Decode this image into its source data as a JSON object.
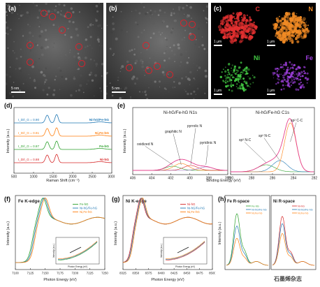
{
  "panels": {
    "a": {
      "label": "(a)",
      "scalebar": "5 nm"
    },
    "b": {
      "label": "(b)",
      "scalebar": "5 nm"
    },
    "c": {
      "label": "(c)",
      "maps": [
        {
          "element": "C",
          "color": "#e33030",
          "scalebar": "1 μm"
        },
        {
          "element": "N",
          "color": "#f08a24",
          "scalebar": "1 μm"
        },
        {
          "element": "Ni",
          "color": "#44cc44",
          "scalebar": "1 μm"
        },
        {
          "element": "Fe",
          "color": "#a040e0",
          "scalebar": "1 μm"
        }
      ]
    },
    "d": {
      "label": "(d)"
    },
    "e": {
      "label": "(e)"
    },
    "f": {
      "label": "(f)"
    },
    "g": {
      "label": "(g)"
    },
    "h": {
      "label": "(h)"
    }
  },
  "colors": {
    "fe_hg": "#2ca02c",
    "ni_hg_fe_hg": "#1f77b4",
    "ni_fe_hg": "#ff7f0e",
    "ni_hg": "#d62728"
  },
  "watermark": "石墨烯杂志",
  "chart_data": [
    {
      "id": "d",
      "type": "line",
      "xlabel": "Raman Shift (cm⁻¹)",
      "ylabel": "Intensity (a.u.)",
      "xlim": [
        500,
        3000
      ],
      "xticks": [
        500,
        1000,
        1500,
        2000,
        2500,
        3000
      ],
      "series": [
        {
          "name": "Ni-hG/Fe-hG",
          "ratio": "I_D/I_G = 0.90",
          "color": "#1f77b4"
        },
        {
          "name": "Ni,Fe-hG",
          "ratio": "I_D/I_G = 0.91",
          "color": "#ff7f0e"
        },
        {
          "name": "Fe-hG",
          "ratio": "I_D/I_G = 0.87",
          "color": "#2ca02c"
        },
        {
          "name": "Ni-hG",
          "ratio": "I_D/I_G = 0.88",
          "color": "#d62728"
        }
      ],
      "peaks": [
        {
          "x": 1350,
          "label": "D"
        },
        {
          "x": 1590,
          "label": "G"
        }
      ]
    },
    {
      "id": "e1",
      "type": "line",
      "title": "Ni-hG/Fe-hG N1s",
      "xlabel": "Binding Energy (eV)",
      "ylabel": "Intensity (a.u.)",
      "xlim": [
        406,
        396
      ],
      "xticks": [
        406,
        404,
        402,
        400,
        398,
        396
      ],
      "components": [
        {
          "name": "oxidized N",
          "center": 401.8
        },
        {
          "name": "graphitic N",
          "center": 400.9
        },
        {
          "name": "pyrrolic N",
          "center": 399.9
        },
        {
          "name": "pyridinic N",
          "center": 398.3
        }
      ]
    },
    {
      "id": "e2",
      "type": "line",
      "title": "Ni-hG/Fe-hG C1s",
      "xlim": [
        290,
        282
      ],
      "xticks": [
        290,
        288,
        286,
        284,
        282
      ],
      "components": [
        {
          "name": "sp³ N-C",
          "center": 286.6
        },
        {
          "name": "sp² N-C",
          "center": 285.3
        },
        {
          "name": "sp² C-C",
          "center": 284.3
        }
      ]
    },
    {
      "id": "f",
      "type": "line",
      "title": "Fe K-edge",
      "xlabel": "Photon Energy (eV)",
      "ylabel": "Intensity (a.u.)",
      "xlim": [
        7100,
        7250
      ],
      "xticks": [
        7100,
        7125,
        7150,
        7175,
        7200,
        7225,
        7250
      ],
      "series": [
        {
          "name": "Fe-hG",
          "color": "#2ca02c"
        },
        {
          "name": "Ni-hG/Fe-hG",
          "color": "#1f77b4"
        },
        {
          "name": "Ni,Fe-hG",
          "color": "#ff7f0e"
        }
      ],
      "inset": {
        "xlabel": "Photon Energy (eV)",
        "ylabel": "Intensity (a.u.)"
      }
    },
    {
      "id": "g",
      "type": "line",
      "title": "Ni K-edge",
      "xlabel": "Photon Energy (eV)",
      "ylabel": "Intensity (a.u.)",
      "xlim": [
        8325,
        8500
      ],
      "xticks": [
        8325,
        8350,
        8375,
        8400,
        8425,
        8450,
        8475,
        8500
      ],
      "series": [
        {
          "name": "Ni-hG",
          "color": "#d62728"
        },
        {
          "name": "Ni-hG/Fe-hG",
          "color": "#1f77b4"
        },
        {
          "name": "Ni,Fe-hG",
          "color": "#ff7f0e"
        }
      ],
      "inset": {
        "xlabel": "Photon Energy (eV)",
        "ylabel": "Intensity (a.u.)"
      }
    },
    {
      "id": "h",
      "type": "line",
      "titles": [
        "Fe R-space",
        "Ni R-space"
      ],
      "ylabel": "Intensity (a.u.)",
      "series_fe": [
        {
          "name": "Fe-hG",
          "color": "#2ca02c"
        },
        {
          "name": "Ni-hG/Fe-hG",
          "color": "#1f77b4"
        },
        {
          "name": "Ni,Fe-hG",
          "color": "#ff7f0e"
        }
      ],
      "series_ni": [
        {
          "name": "Ni-hG",
          "color": "#d62728"
        },
        {
          "name": "Ni-hG/Fe-hG",
          "color": "#1f77b4"
        },
        {
          "name": "Ni,Fe-hG",
          "color": "#ff7f0e"
        }
      ]
    }
  ]
}
